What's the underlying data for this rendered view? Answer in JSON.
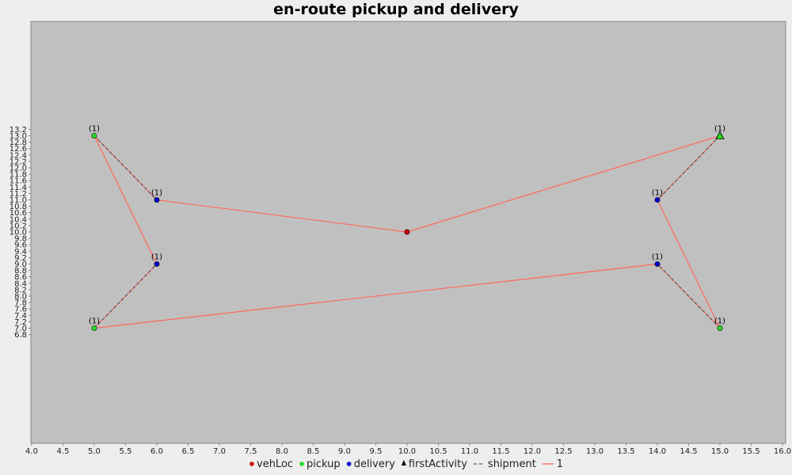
{
  "chart_data": {
    "type": "scatter",
    "title": "en-route pickup and delivery",
    "xlabel": "",
    "ylabel": "",
    "xlim": [
      4.0,
      16.0
    ],
    "ylim": [
      6.7,
      13.3
    ],
    "x_ticks": [
      4.0,
      4.5,
      5.0,
      5.5,
      6.0,
      6.5,
      7.0,
      7.5,
      8.0,
      8.5,
      9.0,
      9.5,
      10.0,
      10.5,
      11.0,
      11.5,
      12.0,
      12.5,
      13.0,
      13.5,
      14.0,
      14.5,
      15.0,
      15.5,
      16.0
    ],
    "y_ticks": [
      6.8,
      7.0,
      7.2,
      7.4,
      7.6,
      7.8,
      8.0,
      8.2,
      8.4,
      8.6,
      8.8,
      9.0,
      9.2,
      9.4,
      9.6,
      9.8,
      10.0,
      10.2,
      10.4,
      10.6,
      10.8,
      11.0,
      11.2,
      11.4,
      11.6,
      11.8,
      12.0,
      12.2,
      12.4,
      12.6,
      12.8,
      13.0,
      13.2
    ],
    "grid": false,
    "colors": {
      "plot_bg": "#c0c0c0",
      "route": "#ff6a5a",
      "shipment": "#555555",
      "vehLoc": "#cc0000",
      "pickup": "#22dd22",
      "delivery": "#0000cc",
      "firstActivity": "#22dd22"
    },
    "vehicle_location": {
      "x": 10,
      "y": 10
    },
    "pickups": [
      {
        "x": 5,
        "y": 13,
        "label": "(1)"
      },
      {
        "x": 15,
        "y": 13,
        "label": "(1)",
        "first_activity": true
      },
      {
        "x": 5,
        "y": 7,
        "label": "(1)"
      },
      {
        "x": 15,
        "y": 7,
        "label": "(1)"
      }
    ],
    "deliveries": [
      {
        "x": 6,
        "y": 11,
        "label": "(1)"
      },
      {
        "x": 14,
        "y": 11,
        "label": "(1)"
      },
      {
        "x": 6,
        "y": 9,
        "label": "(1)"
      },
      {
        "x": 14,
        "y": 9,
        "label": "(1)"
      }
    ],
    "shipments": [
      {
        "from": [
          5,
          13
        ],
        "to": [
          6,
          11
        ]
      },
      {
        "from": [
          15,
          13
        ],
        "to": [
          14,
          11
        ]
      },
      {
        "from": [
          5,
          7
        ],
        "to": [
          6,
          9
        ]
      },
      {
        "from": [
          15,
          7
        ],
        "to": [
          14,
          9
        ]
      }
    ],
    "route": {
      "name": "1",
      "points": [
        [
          10,
          10
        ],
        [
          15,
          13
        ],
        [
          14,
          11
        ],
        [
          15,
          7
        ],
        [
          14,
          9
        ],
        [
          5,
          7
        ],
        [
          6,
          9
        ],
        [
          5,
          13
        ],
        [
          6,
          11
        ],
        [
          10,
          10
        ]
      ]
    },
    "legend": {
      "position": "bottom",
      "items": [
        {
          "label": "vehLoc",
          "symbol": "circle",
          "color": "#cc0000"
        },
        {
          "label": "pickup",
          "symbol": "circle",
          "color": "#22dd22"
        },
        {
          "label": "delivery",
          "symbol": "circle",
          "color": "#0000cc"
        },
        {
          "label": "firstActivity",
          "symbol": "triangle",
          "color": "#000000"
        },
        {
          "label": "shipment",
          "symbol": "dash",
          "color": "#555555"
        },
        {
          "label": "1",
          "symbol": "line",
          "color": "#ff6a5a"
        }
      ]
    }
  }
}
